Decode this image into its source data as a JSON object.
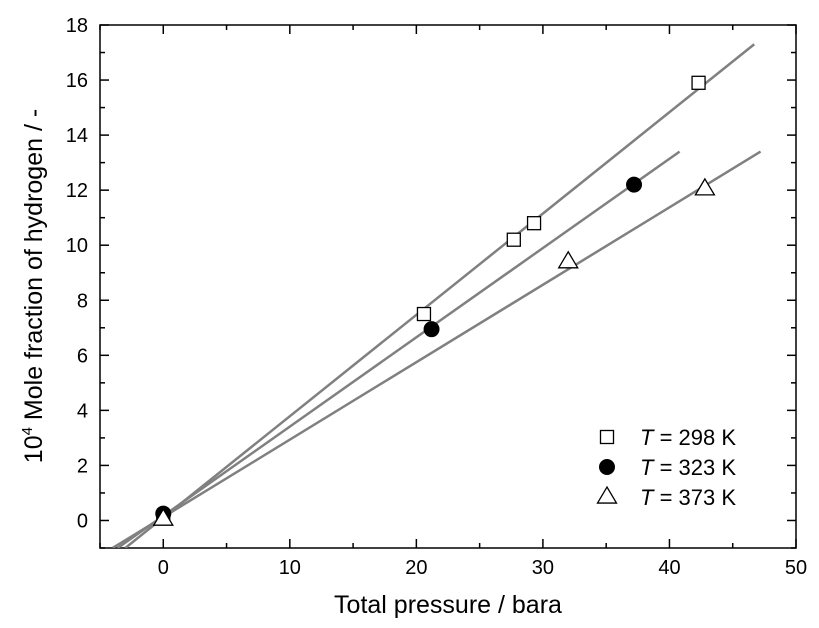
{
  "chart_data": {
    "type": "scatter",
    "xlabel": "Total pressure / bara",
    "ylabel_prefix": "10",
    "ylabel_exponent": "4",
    "ylabel_rest": " Mole fraction of hydrogen / -",
    "xlim": [
      -5,
      50
    ],
    "ylim": [
      -1,
      18
    ],
    "xticks": [
      0,
      10,
      20,
      30,
      40,
      50
    ],
    "yticks": [
      0,
      2,
      4,
      6,
      8,
      10,
      12,
      14,
      16,
      18
    ],
    "grid": false,
    "legend_position": "bottom-right",
    "series": [
      {
        "name_italic": "T",
        "name_rest": " = 298 K",
        "marker": "square-open",
        "points": [
          [
            0,
            0.1
          ],
          [
            20.6,
            7.5
          ],
          [
            27.7,
            10.2
          ],
          [
            29.3,
            10.8
          ],
          [
            42.3,
            15.9
          ]
        ],
        "fit": [
          [
            -3.0,
            -1.0
          ],
          [
            46.7,
            17.3
          ]
        ]
      },
      {
        "name_italic": "T",
        "name_rest": " = 323 K",
        "marker": "circle-filled",
        "points": [
          [
            0,
            0.25
          ],
          [
            21.2,
            6.95
          ],
          [
            37.2,
            12.2
          ]
        ],
        "fit": [
          [
            -3.6,
            -1.0
          ],
          [
            40.8,
            13.4
          ]
        ]
      },
      {
        "name_italic": "T",
        "name_rest": " = 373 K",
        "marker": "triangle-open",
        "points": [
          [
            0,
            0.05
          ],
          [
            32.0,
            9.4
          ],
          [
            42.8,
            12.05
          ]
        ],
        "fit": [
          [
            -4.0,
            -1.0
          ],
          [
            47.2,
            13.4
          ]
        ]
      }
    ]
  }
}
